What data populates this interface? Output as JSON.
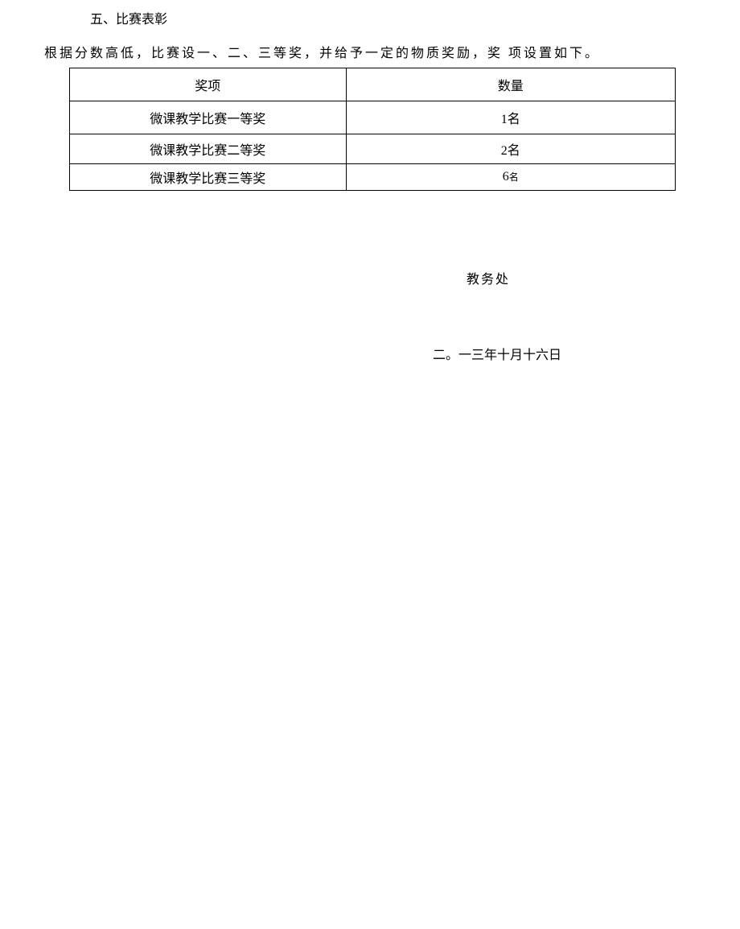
{
  "section_title": "五、比赛表彰",
  "description": "根据分数高低，比赛设一、二、三等奖，并给予一定的物质奖励，奖  项设置如下。",
  "table": {
    "headers": {
      "award": "奖项",
      "count": "数量"
    },
    "rows": [
      {
        "award": "微课教学比赛一等奖",
        "count": "1名"
      },
      {
        "award": "微课教学比赛二等奖",
        "count": "2名"
      },
      {
        "award": "微课教学比赛三等奖",
        "count_num": "6",
        "count_suffix": "名"
      }
    ]
  },
  "signature": "教务处",
  "date": "二。一三年十月十六日",
  "colors": {
    "background": "#ffffff",
    "text": "#000000",
    "border": "#000000"
  },
  "typography": {
    "base_fontsize": 16,
    "small_fontsize": 12,
    "font_family": "SimSun"
  }
}
